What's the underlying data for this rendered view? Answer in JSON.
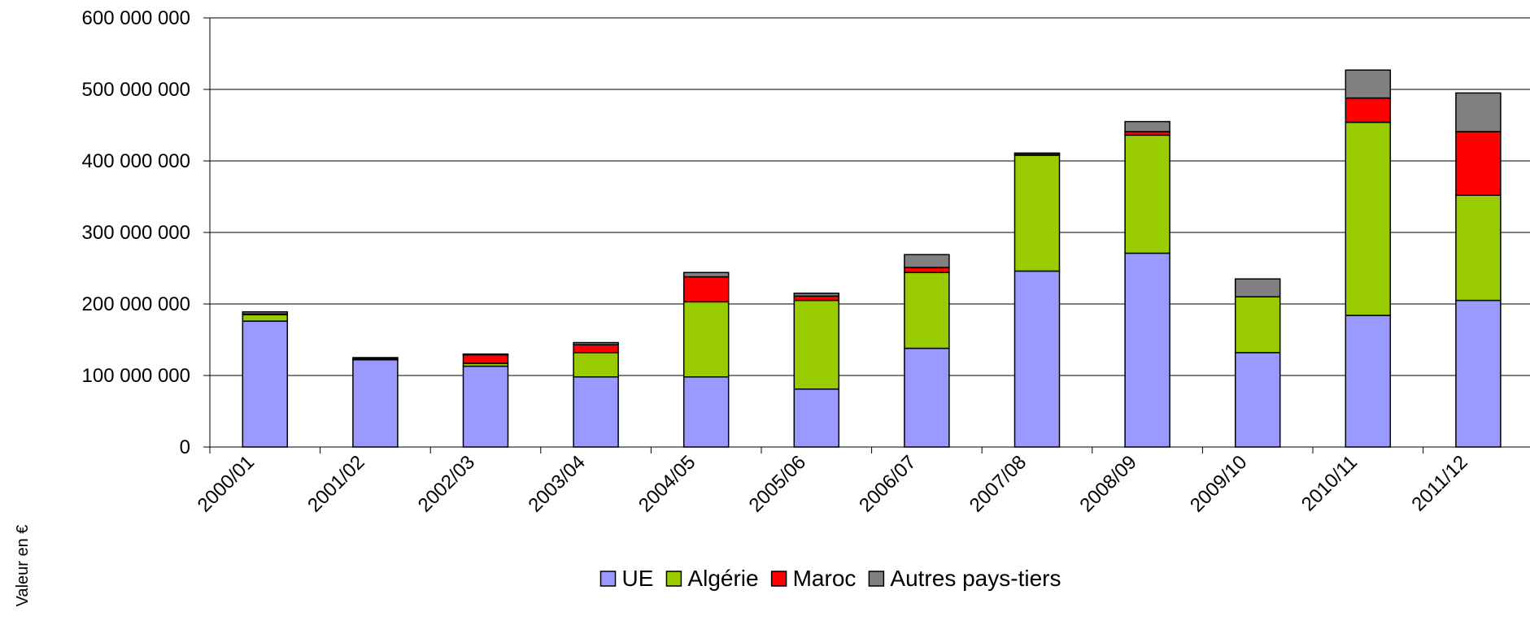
{
  "chart_data": {
    "type": "stacked-bar",
    "y_axis_title": "Valeur en €",
    "categories": [
      "2000/01",
      "2001/02",
      "2002/03",
      "2003/04",
      "2004/05",
      "2005/06",
      "2006/07",
      "2007/08",
      "2008/09",
      "2009/10",
      "2010/11",
      "2011/12"
    ],
    "series": [
      {
        "name": "UE",
        "color": "#9999ff",
        "values": [
          176000000,
          122000000,
          113000000,
          98000000,
          98000000,
          81000000,
          138000000,
          246000000,
          271000000,
          132000000,
          184000000,
          205000000
        ]
      },
      {
        "name": "Algérie",
        "color": "#99cc00",
        "values": [
          9000000,
          1000000,
          4000000,
          34000000,
          105000000,
          124000000,
          106000000,
          162000000,
          165000000,
          78000000,
          270000000,
          147000000
        ]
      },
      {
        "name": "Maroc",
        "color": "#ff0000",
        "values": [
          1000000,
          500000,
          12000000,
          11000000,
          35000000,
          6000000,
          7000000,
          1000000,
          5000000,
          0,
          34000000,
          89000000
        ]
      },
      {
        "name": "Autres pays-tiers",
        "color": "#808080",
        "values": [
          3000000,
          1500000,
          1000000,
          3000000,
          6000000,
          4000000,
          18000000,
          2000000,
          14000000,
          25000000,
          39000000,
          54000000
        ]
      }
    ],
    "ylim": [
      0,
      600000000
    ],
    "yticks": [
      0,
      {
        "value": 100000000,
        "label": "100 000 000"
      },
      {
        "value": 200000000,
        "label": "200 000 000"
      },
      {
        "value": 300000000,
        "label": "300 000 000"
      },
      {
        "value": 400000000,
        "label": "400 000 000"
      },
      {
        "value": 500000000,
        "label": "500 000 000"
      },
      {
        "value": 600000000,
        "label": "600 000 000"
      }
    ],
    "grid": true,
    "legend": "bottom"
  }
}
